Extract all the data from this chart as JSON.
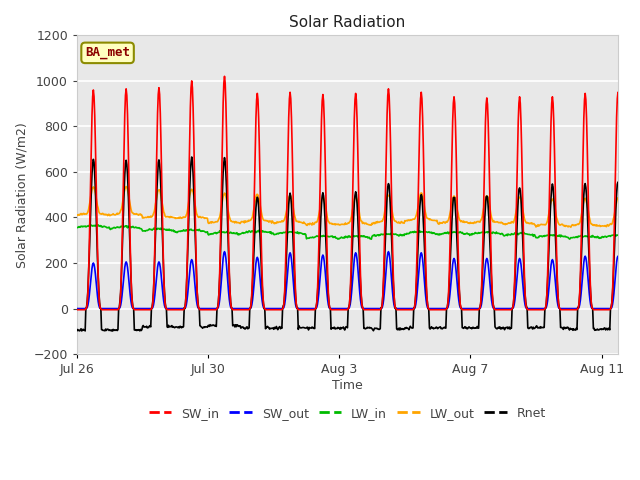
{
  "title": "Solar Radiation",
  "ylabel": "Solar Radiation (W/m2)",
  "xlabel": "Time",
  "ylim": [
    -200,
    1200
  ],
  "yticks": [
    -200,
    0,
    200,
    400,
    600,
    800,
    1000,
    1200
  ],
  "annotation_text": "BA_met",
  "annotation_color": "#8B0000",
  "annotation_bg": "#FFFFC0",
  "annotation_border": "#8B8B00",
  "fig_bg": "#FFFFFF",
  "plot_bg": "#E8E8E8",
  "grid_color": "#FFFFFF",
  "legend_entries": [
    "SW_in",
    "SW_out",
    "LW_in",
    "LW_out",
    "Rnet"
  ],
  "line_colors": {
    "SW_in": "#FF0000",
    "SW_out": "#0000FF",
    "LW_in": "#00BB00",
    "LW_out": "#FFA500",
    "Rnet": "#000000"
  },
  "n_days": 17,
  "SW_in_peak": [
    960,
    965,
    970,
    1000,
    1020,
    945,
    950,
    940,
    945,
    965,
    950,
    930,
    925,
    930,
    930,
    945,
    950
  ],
  "SW_out_peak": [
    200,
    205,
    205,
    215,
    250,
    225,
    245,
    235,
    245,
    250,
    245,
    220,
    220,
    220,
    215,
    230,
    230
  ],
  "LW_in_base": [
    355,
    350,
    340,
    335,
    325,
    330,
    325,
    308,
    308,
    318,
    328,
    325,
    325,
    320,
    312,
    308,
    312
  ],
  "LW_out_base": [
    410,
    410,
    398,
    395,
    375,
    380,
    375,
    368,
    368,
    375,
    385,
    375,
    375,
    370,
    362,
    362,
    362
  ],
  "Rnet_peak": [
    655,
    650,
    655,
    660,
    660,
    490,
    505,
    505,
    515,
    550,
    500,
    495,
    500,
    535,
    545,
    550,
    560
  ],
  "Rnet_night": [
    -95,
    -95,
    -80,
    -80,
    -75,
    -85,
    -85,
    -85,
    -85,
    -90,
    -85,
    -85,
    -85,
    -85,
    -85,
    -90,
    -90
  ],
  "xtick_positions": [
    0,
    4,
    8,
    12,
    16
  ],
  "xtick_labels": [
    "Jul 26",
    "Jul 30",
    "Aug 3",
    "Aug 7",
    "Aug 11"
  ],
  "figsize": [
    6.4,
    4.8
  ],
  "dpi": 100
}
